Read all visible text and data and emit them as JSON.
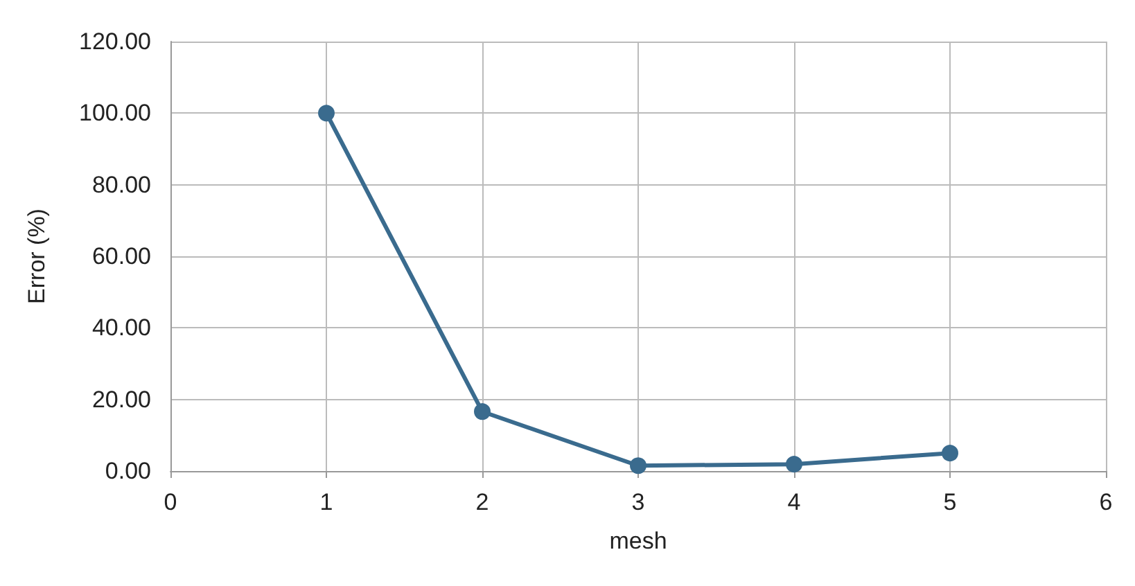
{
  "chart_data": {
    "type": "line",
    "xlabel": "mesh",
    "ylabel": "Error (%)",
    "x": [
      1,
      2,
      3,
      4,
      5
    ],
    "series": [
      {
        "color": "#3a6b8e",
        "values": [
          100,
          16.6,
          1.5,
          1.9,
          5.0
        ]
      }
    ],
    "xlim": [
      0,
      6
    ],
    "xticks": [
      0,
      1,
      2,
      3,
      4,
      5,
      6
    ],
    "ylim": [
      0,
      120
    ],
    "yticks": [
      {
        "value": 0,
        "label": "0.00"
      },
      {
        "value": 20,
        "label": "20.00"
      },
      {
        "value": 40,
        "label": "40.00"
      },
      {
        "value": 60,
        "label": "60.00"
      },
      {
        "value": 80,
        "label": "80.00"
      },
      {
        "value": 100,
        "label": "100.00"
      },
      {
        "value": 120,
        "label": "120.00"
      }
    ],
    "grid": true,
    "marker": "circle",
    "line_style": "solid"
  }
}
